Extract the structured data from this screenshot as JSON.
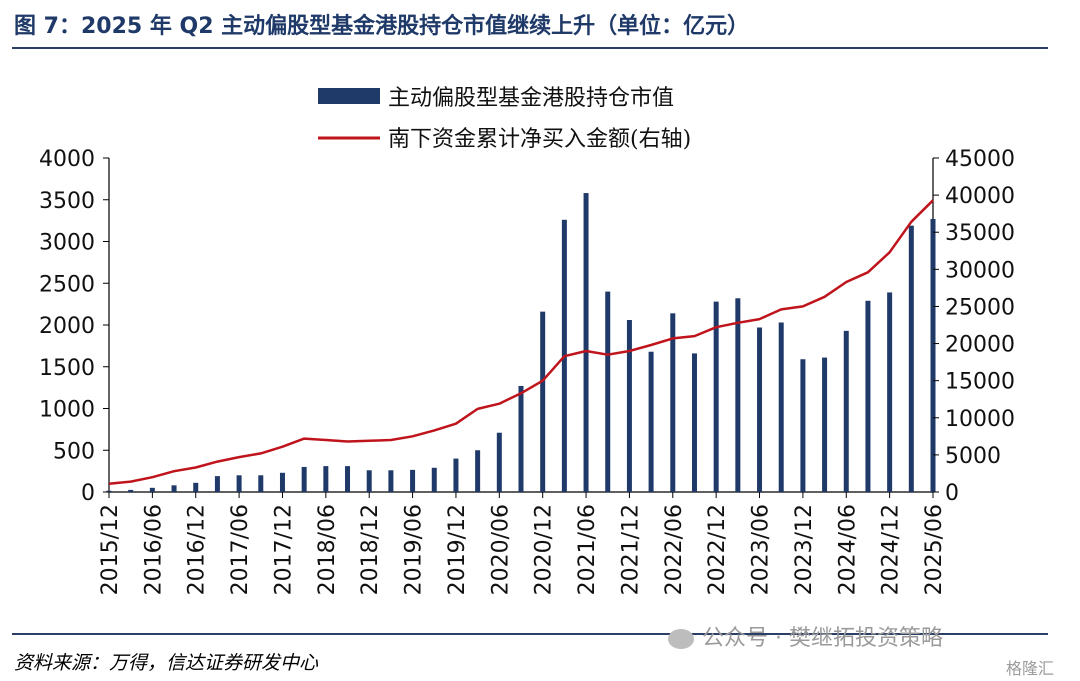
{
  "title": "图 7：2025 年 Q2 主动偏股型基金港股持仓市值继续上升（单位：亿元）",
  "source": "资料来源：万得，信达证券研发中心",
  "watermark": "公众号 · 樊继拓投资策略",
  "corner_mark": "格隆汇",
  "colors": {
    "bar": "#1f3a68",
    "line": "#c0141c",
    "title": "#1f3a68"
  },
  "chart_data": {
    "type": "bar+line",
    "categories": [
      "2015/12",
      "2016/03",
      "2016/06",
      "2016/09",
      "2016/12",
      "2017/03",
      "2017/06",
      "2017/09",
      "2017/12",
      "2018/03",
      "2018/06",
      "2018/09",
      "2018/12",
      "2019/03",
      "2019/06",
      "2019/09",
      "2019/12",
      "2020/03",
      "2020/06",
      "2020/09",
      "2020/12",
      "2021/03",
      "2021/06",
      "2021/09",
      "2021/12",
      "2022/03",
      "2022/06",
      "2022/09",
      "2022/12",
      "2023/03",
      "2023/06",
      "2023/09",
      "2023/12",
      "2024/03",
      "2024/06",
      "2024/09",
      "2024/12",
      "2025/03",
      "2025/06"
    ],
    "x_tick_labels": [
      "2015/12",
      "2016/06",
      "2016/12",
      "2017/06",
      "2017/12",
      "2018/06",
      "2018/12",
      "2019/06",
      "2019/12",
      "2020/06",
      "2020/12",
      "2021/06",
      "2021/12",
      "2022/06",
      "2022/12",
      "2023/06",
      "2023/12",
      "2024/06",
      "2024/12",
      "2025/06"
    ],
    "series": [
      {
        "name": "主动偏股型基金港股持仓市值",
        "type": "bar",
        "axis": "left",
        "values": [
          15,
          25,
          50,
          80,
          110,
          190,
          200,
          200,
          230,
          300,
          310,
          310,
          260,
          260,
          265,
          290,
          400,
          500,
          710,
          1270,
          2160,
          3260,
          3580,
          2400,
          2060,
          1680,
          2140,
          1660,
          2280,
          2320,
          1970,
          2030,
          1590,
          1610,
          1930,
          2290,
          2390,
          3190,
          3270
        ]
      },
      {
        "name": "南下资金累计净买入金额(右轴)",
        "type": "line",
        "axis": "right",
        "values": [
          1100,
          1400,
          2000,
          2800,
          3300,
          4100,
          4700,
          5200,
          6100,
          7200,
          7000,
          6800,
          6900,
          7000,
          7500,
          8300,
          9200,
          11200,
          11900,
          13300,
          15000,
          18300,
          19000,
          18500,
          19000,
          19800,
          20700,
          21000,
          22200,
          22800,
          23300,
          24600,
          25000,
          26300,
          28300,
          29600,
          32300,
          36400,
          39300
        ]
      }
    ],
    "y_left": {
      "min": 0,
      "max": 4000,
      "ticks": [
        "0",
        "500",
        "1000",
        "1500",
        "2000",
        "2500",
        "3000",
        "3500",
        "4000"
      ]
    },
    "y_right": {
      "min": 0,
      "max": 45000,
      "ticks": [
        "0",
        "5000",
        "10000",
        "15000",
        "20000",
        "25000",
        "30000",
        "35000",
        "40000",
        "45000"
      ]
    },
    "legend_position": "top-center"
  }
}
